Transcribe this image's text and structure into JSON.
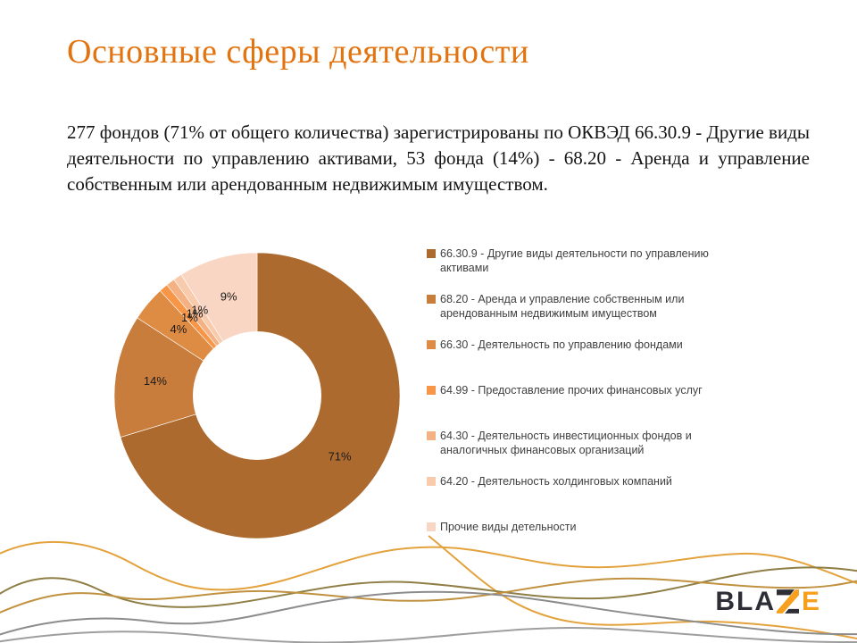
{
  "slide_title": "Основные сферы деятельности",
  "body_text": "277 фондов (71% от общего количества) зарегистрированы по ОКВЭД 66.30.9 - Другие виды деятельности по управлению активами, 53 фонда (14%) - 68.20 - Аренда и управление собственным или арендованным недвижимым имуществом.",
  "chart_data": {
    "type": "pie",
    "subtype": "donut",
    "title": "",
    "legend_position": "right",
    "donut_hole_ratio": 0.45,
    "start_angle_deg": 0,
    "direction": "clockwise",
    "categories": [
      "66.30.9 - Другие виды деятельности по управлению активами",
      "68.20 - Аренда и управление собственным или арендованным недвижимым имуществом",
      "66.30 - Деятельность по управлению фондами",
      "64.99 - Предоставление прочих финансовых услуг",
      "64.30 - Деятельность инвестиционных фондов и аналогичных финансовых организаций",
      "64.20 - Деятельность холдинговых компаний",
      "Прочие виды детельности"
    ],
    "values": [
      71,
      14,
      4,
      1,
      1,
      1,
      9
    ],
    "slices": [
      {
        "label": "66.30.9 - Другие виды деятельности по управлению активами",
        "value": 71,
        "display": "71%",
        "color": "#AC6A2F",
        "two_line": true
      },
      {
        "label": "68.20 - Аренда и управление собственным или арендованным недвижимым имуществом",
        "value": 14,
        "display": "14%",
        "color": "#C97D3C",
        "two_line": true
      },
      {
        "label": "66.30 - Деятельность по управлению фондами",
        "value": 4,
        "display": "4%",
        "color": "#DE8B44",
        "two_line": false
      },
      {
        "label": "64.99 - Предоставление прочих финансовых услуг",
        "value": 1,
        "display": "1%",
        "color": "#F79646",
        "two_line": false
      },
      {
        "label": "64.30 - Деятельность инвестиционных фондов и аналогичных финансовых организаций",
        "value": 1,
        "display": "1%",
        "color": "#F4B183",
        "two_line": true
      },
      {
        "label": "64.20 - Деятельность холдинговых компаний",
        "value": 1,
        "display": "1%",
        "color": "#F8CBAD",
        "two_line": false
      },
      {
        "label": "Прочие виды детельности",
        "value": 9,
        "display": "9%",
        "color": "#F9D6C3",
        "two_line": false
      }
    ]
  },
  "logo": {
    "brand": "BLAZE",
    "prefix": "BLA",
    "z_letter": "Z",
    "suffix": "E"
  },
  "theme": {
    "title_color": "#E2730E",
    "body_color": "#141414",
    "legend_text_color": "#404040",
    "pie_label_color": "#1A1A1A",
    "logo_dark": "#2E2E36",
    "logo_orange": "#F7A01D",
    "wave_colors": {
      "gold": "#E3A23C",
      "olive": "#8F7E45",
      "tan": "#C0913F",
      "gray1": "#8C8C8C",
      "gray2": "#9E9E9E"
    }
  }
}
